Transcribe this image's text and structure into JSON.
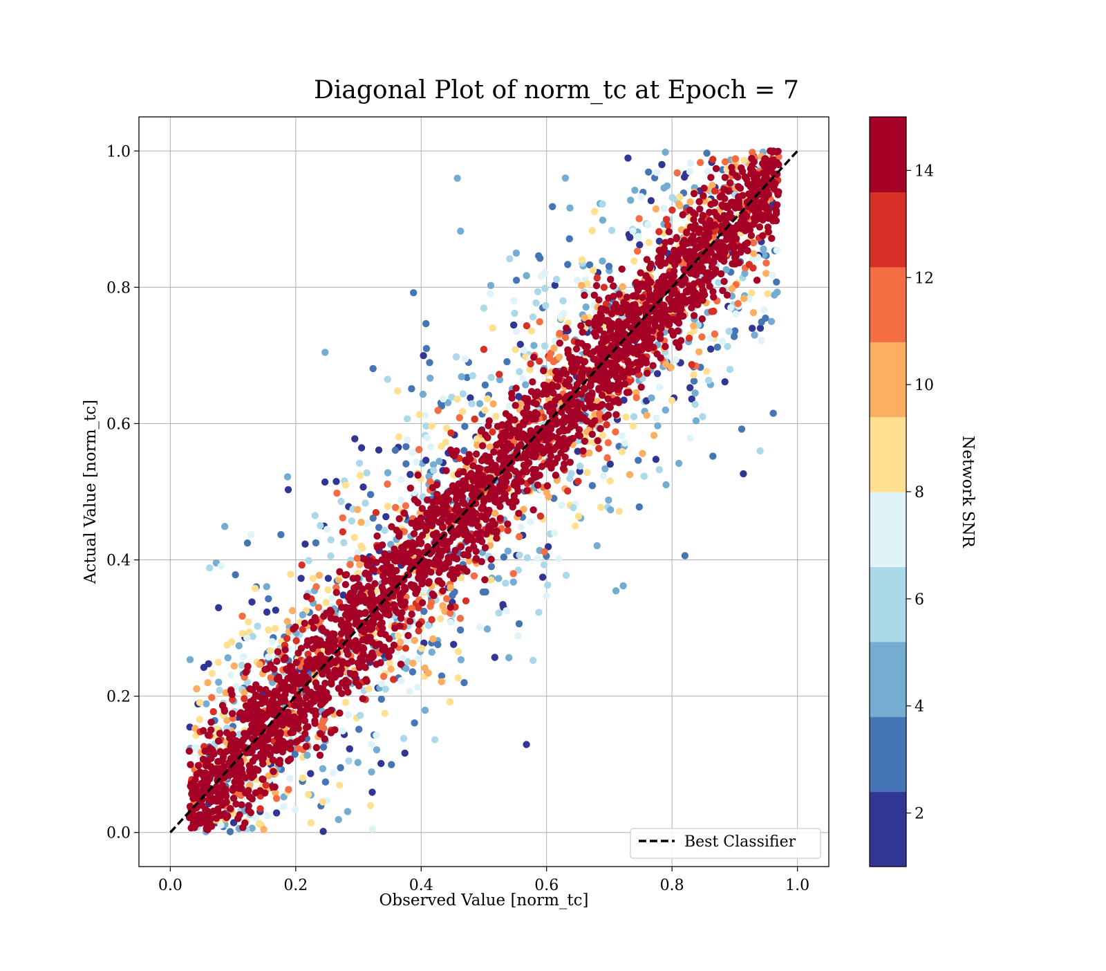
{
  "chart_data": {
    "type": "scatter",
    "title": "Diagonal Plot of norm_tc at Epoch = 7",
    "xlabel": "Observed Value [norm_tc]",
    "ylabel": "Actual Value [norm_tc]",
    "xlim": [
      -0.05,
      1.05
    ],
    "ylim": [
      -0.05,
      1.05
    ],
    "xticks": [
      0.0,
      0.2,
      0.4,
      0.6,
      0.8,
      1.0
    ],
    "yticks": [
      0.0,
      0.2,
      0.4,
      0.6,
      0.8,
      1.0
    ],
    "xtick_labels": [
      "0.0",
      "0.2",
      "0.4",
      "0.6",
      "0.8",
      "1.0"
    ],
    "ytick_labels": [
      "0.0",
      "0.2",
      "0.4",
      "0.6",
      "0.8",
      "1.0"
    ],
    "grid": true,
    "legend": {
      "placement": "lower right",
      "entries": [
        "Best Classifier"
      ]
    },
    "reference_line": {
      "name": "Best Classifier",
      "style": "dashed",
      "color": "#000000",
      "x": [
        0.0,
        1.0
      ],
      "y": [
        0.0,
        1.0
      ]
    },
    "scatter_description": {
      "x_range": [
        0.03,
        0.97
      ],
      "y_range": [
        0.0,
        1.0
      ],
      "high_snr_band": "points with Network SNR ~14 lie close to the y = x diagonal (spread about ±0.15)",
      "low_snr_spread": "points with low Network SNR (2–6) scatter far from the diagonal, filling upper-left and lower-right regions"
    },
    "colorbar": {
      "label": "Network SNR",
      "range": [
        1,
        15
      ],
      "tick_values": [
        2,
        4,
        6,
        8,
        10,
        12,
        14
      ],
      "tick_labels": [
        "2",
        "4",
        "6",
        "8",
        "10",
        "12",
        "14"
      ],
      "colormap": "RdYlBu_r",
      "colors": [
        "#313695",
        "#4575b4",
        "#74add1",
        "#abd9e9",
        "#e0f3f8",
        "#fee090",
        "#fdae61",
        "#f46d43",
        "#d73027",
        "#a50026"
      ]
    }
  }
}
